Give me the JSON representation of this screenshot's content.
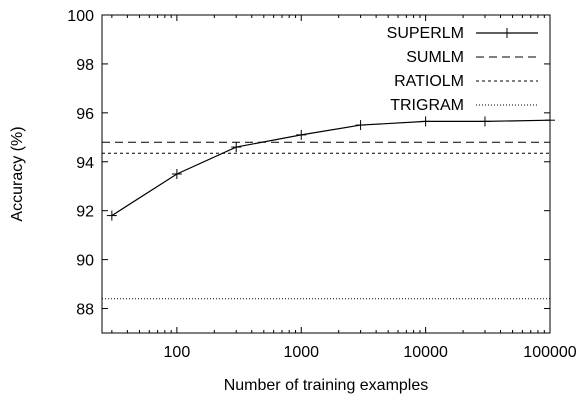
{
  "chart_data": {
    "type": "line",
    "xlabel": "Number of training examples",
    "ylabel": "Accuracy (%)",
    "x_scale": "log",
    "xlim": [
      25,
      100000
    ],
    "ylim": [
      87,
      100
    ],
    "x_ticks": [
      100,
      1000,
      10000,
      100000
    ],
    "x_tick_labels": [
      "100",
      "1000",
      "10000",
      "100000"
    ],
    "y_ticks": [
      88,
      90,
      92,
      94,
      96,
      98,
      100
    ],
    "y_tick_labels": [
      "88",
      "90",
      "92",
      "94",
      "96",
      "98",
      "100"
    ],
    "grid": false,
    "legend_position": "top-right",
    "series": [
      {
        "name": "SUPERLM",
        "style": "solid-with-plus-markers",
        "color": "#000000",
        "x": [
          30,
          100,
          300,
          1000,
          3000,
          10000,
          30000,
          100000
        ],
        "values": [
          91.8,
          93.5,
          94.6,
          95.1,
          95.5,
          95.65,
          95.65,
          95.7
        ]
      },
      {
        "name": "SUMLM",
        "style": "dashed",
        "color": "#000000",
        "constant": 94.8
      },
      {
        "name": "RATIOLM",
        "style": "short-dashed",
        "color": "#000000",
        "constant": 94.35
      },
      {
        "name": "TRIGRAM",
        "style": "dotted",
        "color": "#000000",
        "constant": 88.4
      }
    ]
  }
}
